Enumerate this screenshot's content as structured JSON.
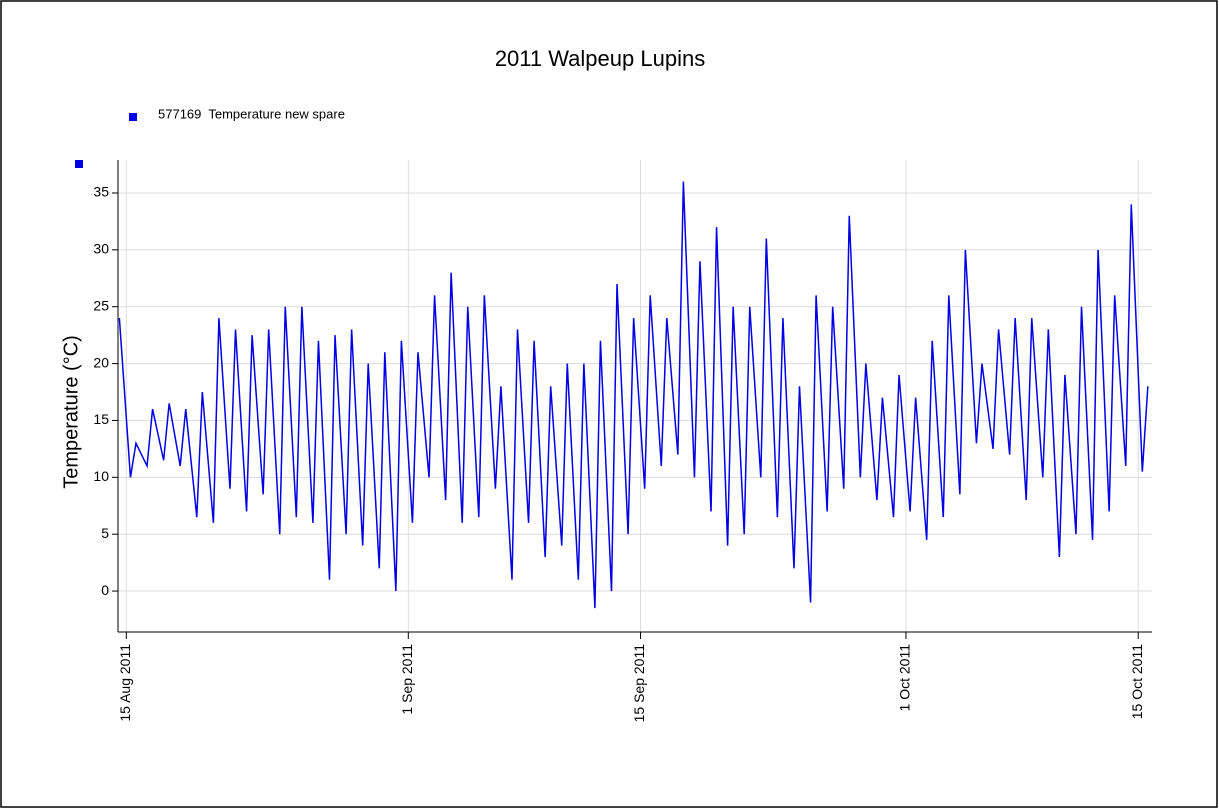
{
  "chart_data": {
    "type": "line",
    "title": "2011 Walpeup Lupins",
    "y_label": "Temperature (°C)",
    "x": [
      "2011-08-14 14:00",
      "2011-08-15 06:00",
      "2011-08-15 14:00",
      "2011-08-16 06:00",
      "2011-08-16 14:00",
      "2011-08-17 06:00",
      "2011-08-17 14:00",
      "2011-08-18 06:00",
      "2011-08-18 14:00",
      "2011-08-19 06:00",
      "2011-08-19 14:00",
      "2011-08-20 06:00",
      "2011-08-20 14:00",
      "2011-08-21 06:00",
      "2011-08-21 14:00",
      "2011-08-22 06:00",
      "2011-08-22 14:00",
      "2011-08-23 06:00",
      "2011-08-23 14:00",
      "2011-08-24 06:00",
      "2011-08-24 14:00",
      "2011-08-25 06:00",
      "2011-08-25 14:00",
      "2011-08-26 06:00",
      "2011-08-26 14:00",
      "2011-08-27 06:00",
      "2011-08-27 14:00",
      "2011-08-28 06:00",
      "2011-08-28 14:00",
      "2011-08-29 06:00",
      "2011-08-29 14:00",
      "2011-08-30 06:00",
      "2011-08-30 14:00",
      "2011-08-31 06:00",
      "2011-08-31 14:00",
      "2011-09-01 06:00",
      "2011-09-01 14:00",
      "2011-09-02 06:00",
      "2011-09-02 14:00",
      "2011-09-03 06:00",
      "2011-09-03 14:00",
      "2011-09-04 06:00",
      "2011-09-04 14:00",
      "2011-09-05 06:00",
      "2011-09-05 14:00",
      "2011-09-06 06:00",
      "2011-09-06 14:00",
      "2011-09-07 06:00",
      "2011-09-07 14:00",
      "2011-09-08 06:00",
      "2011-09-08 14:00",
      "2011-09-09 06:00",
      "2011-09-09 14:00",
      "2011-09-10 06:00",
      "2011-09-10 14:00",
      "2011-09-11 06:00",
      "2011-09-11 14:00",
      "2011-09-12 06:00",
      "2011-09-12 14:00",
      "2011-09-13 06:00",
      "2011-09-13 14:00",
      "2011-09-14 06:00",
      "2011-09-14 14:00",
      "2011-09-15 06:00",
      "2011-09-15 14:00",
      "2011-09-16 06:00",
      "2011-09-16 14:00",
      "2011-09-17 06:00",
      "2011-09-17 14:00",
      "2011-09-18 06:00",
      "2011-09-18 14:00",
      "2011-09-19 06:00",
      "2011-09-19 14:00",
      "2011-09-20 06:00",
      "2011-09-20 14:00",
      "2011-09-21 06:00",
      "2011-09-21 14:00",
      "2011-09-22 06:00",
      "2011-09-22 14:00",
      "2011-09-23 06:00",
      "2011-09-23 14:00",
      "2011-09-24 06:00",
      "2011-09-24 14:00",
      "2011-09-25 06:00",
      "2011-09-25 14:00",
      "2011-09-26 06:00",
      "2011-09-26 14:00",
      "2011-09-27 06:00",
      "2011-09-27 14:00",
      "2011-09-28 06:00",
      "2011-09-28 14:00",
      "2011-09-29 06:00",
      "2011-09-29 14:00",
      "2011-09-30 06:00",
      "2011-09-30 14:00",
      "2011-10-01 06:00",
      "2011-10-01 14:00",
      "2011-10-02 06:00",
      "2011-10-02 14:00",
      "2011-10-03 06:00",
      "2011-10-03 14:00",
      "2011-10-04 06:00",
      "2011-10-04 14:00",
      "2011-10-05 06:00",
      "2011-10-05 14:00",
      "2011-10-06 06:00",
      "2011-10-06 14:00",
      "2011-10-07 06:00",
      "2011-10-07 14:00",
      "2011-10-08 06:00",
      "2011-10-08 14:00",
      "2011-10-09 06:00",
      "2011-10-09 14:00",
      "2011-10-10 06:00",
      "2011-10-10 14:00",
      "2011-10-11 06:00",
      "2011-10-11 14:00",
      "2011-10-12 06:00",
      "2011-10-12 14:00",
      "2011-10-13 06:00",
      "2011-10-13 14:00",
      "2011-10-14 06:00",
      "2011-10-14 14:00",
      "2011-10-15 06:00",
      "2011-10-15 14:00"
    ],
    "series": [
      {
        "name": "577169  Temperature new spare",
        "color": "#0000e6",
        "values": [
          24,
          10,
          13,
          11,
          16,
          11.5,
          16.5,
          11,
          16,
          6.5,
          17.5,
          6,
          24,
          9,
          23,
          7,
          22.5,
          8.5,
          23,
          5,
          25,
          6.5,
          25,
          6,
          22,
          1,
          22.5,
          5,
          23,
          4,
          20,
          2,
          21,
          0,
          22,
          6,
          21,
          10,
          26,
          8,
          28,
          6,
          25,
          6.5,
          26,
          9,
          18,
          1,
          23,
          6,
          22,
          3,
          18,
          4,
          20,
          1,
          20,
          -1.5,
          22,
          0,
          27,
          5,
          24,
          9,
          26,
          11,
          24,
          12,
          36,
          10,
          29,
          7,
          32,
          4,
          25,
          5,
          25,
          10,
          31,
          6.5,
          24,
          2,
          18,
          -1,
          26,
          7,
          25,
          9,
          33,
          10,
          20,
          8,
          17,
          6.5,
          19,
          7,
          17,
          4.5,
          22,
          6.5,
          26,
          8.5,
          30,
          13,
          20,
          12.5,
          23,
          12,
          24,
          8,
          24,
          10,
          23,
          3,
          19,
          5,
          25,
          4.5,
          30,
          7,
          26,
          11,
          34,
          10.5,
          18
        ]
      }
    ],
    "xlim": [
      "2011-08-14 12:00",
      "2011-10-15 20:00"
    ],
    "xticks": [
      {
        "value": "2011-08-15 00:00",
        "label": "15 Aug 2011"
      },
      {
        "value": "2011-09-01 00:00",
        "label": "1 Sep 2011"
      },
      {
        "value": "2011-09-15 00:00",
        "label": "15 Sep 2011"
      },
      {
        "value": "2011-10-01 00:00",
        "label": "1 Oct 2011"
      },
      {
        "value": "2011-10-15 00:00",
        "label": "15 Oct 2011"
      }
    ],
    "ylim": [
      -3.6,
      37.9
    ],
    "yticks": [
      0,
      5,
      10,
      15,
      20,
      25,
      30,
      35
    ],
    "grid": true
  }
}
